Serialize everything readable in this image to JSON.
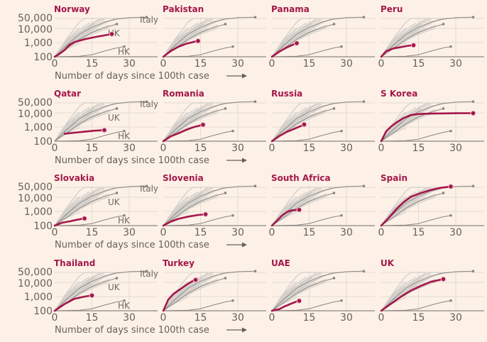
{
  "chart_data": {
    "type": "line",
    "title": "",
    "xlabel": "Number of days since 100th case",
    "ylabel": "",
    "y_scale": "log",
    "ylim": [
      100,
      60000
    ],
    "xlim": [
      0,
      40
    ],
    "x_ticks": [
      "0",
      "15",
      "30"
    ],
    "x_tick_values": [
      0,
      15,
      30
    ],
    "y_ticks": [
      "100",
      "1,000",
      "10,000",
      "50,000"
    ],
    "y_tick_values": [
      100,
      1000,
      10000,
      50000
    ],
    "grid": true,
    "colors": {
      "highlight": "#a3174a",
      "reference": "#8a8580",
      "background_lines": "#d3cfcb",
      "axis": "#8d8782",
      "grid": "#e5dbd2"
    },
    "reference_series": [
      {
        "name": "Italy",
        "points": [
          [
            0,
            100
          ],
          [
            5,
            700
          ],
          [
            10,
            3800
          ],
          [
            15,
            12000
          ],
          [
            20,
            28000
          ],
          [
            25,
            45000
          ],
          [
            30,
            57000
          ],
          [
            37,
            62000
          ]
        ]
      },
      {
        "name": "UK",
        "points": [
          [
            0,
            100
          ],
          [
            5,
            400
          ],
          [
            10,
            1700
          ],
          [
            15,
            5000
          ],
          [
            20,
            11000
          ],
          [
            25,
            20000
          ]
        ]
      },
      {
        "name": "HK",
        "points": [
          [
            0,
            100
          ],
          [
            10,
            110
          ],
          [
            15,
            140
          ],
          [
            20,
            250
          ],
          [
            25,
            420
          ],
          [
            28,
            520
          ]
        ]
      }
    ],
    "background_series_note": "grey lines for all other countries",
    "panels": [
      {
        "country": "Norway",
        "show_reference_labels": true,
        "points": [
          [
            0,
            100
          ],
          [
            2,
            160
          ],
          [
            4,
            300
          ],
          [
            6,
            700
          ],
          [
            8,
            1100
          ],
          [
            12,
            1700
          ],
          [
            16,
            2400
          ],
          [
            20,
            3200
          ],
          [
            23,
            4000
          ]
        ]
      },
      {
        "country": "Pakistan",
        "show_reference_labels": false,
        "points": [
          [
            0,
            100
          ],
          [
            3,
            250
          ],
          [
            6,
            500
          ],
          [
            9,
            800
          ],
          [
            12,
            1100
          ],
          [
            14,
            1300
          ]
        ]
      },
      {
        "country": "Panama",
        "show_reference_labels": false,
        "points": [
          [
            0,
            100
          ],
          [
            3,
            230
          ],
          [
            6,
            450
          ],
          [
            8,
            650
          ],
          [
            10,
            900
          ]
        ]
      },
      {
        "country": "Peru",
        "show_reference_labels": false,
        "points": [
          [
            0,
            100
          ],
          [
            2,
            250
          ],
          [
            5,
            390
          ],
          [
            8,
            480
          ],
          [
            11,
            600
          ],
          [
            13,
            650
          ]
        ]
      },
      {
        "country": "Qatar",
        "show_reference_labels": true,
        "points": [
          [
            4,
            330
          ],
          [
            8,
            400
          ],
          [
            12,
            470
          ],
          [
            16,
            550
          ],
          [
            20,
            600
          ]
        ]
      },
      {
        "country": "Romania",
        "show_reference_labels": false,
        "points": [
          [
            0,
            100
          ],
          [
            3,
            220
          ],
          [
            6,
            350
          ],
          [
            9,
            600
          ],
          [
            12,
            950
          ],
          [
            15,
            1300
          ],
          [
            16,
            1450
          ]
        ]
      },
      {
        "country": "Russia",
        "show_reference_labels": false,
        "points": [
          [
            0,
            100
          ],
          [
            3,
            230
          ],
          [
            6,
            450
          ],
          [
            9,
            750
          ],
          [
            12,
            1250
          ],
          [
            13,
            1500
          ]
        ]
      },
      {
        "country": "S Korea",
        "show_reference_labels": false,
        "points": [
          [
            0,
            100
          ],
          [
            2,
            500
          ],
          [
            4,
            1100
          ],
          [
            6,
            2000
          ],
          [
            9,
            4300
          ],
          [
            12,
            7000
          ],
          [
            15,
            8200
          ],
          [
            20,
            8800
          ],
          [
            30,
            9300
          ],
          [
            37,
            9400
          ]
        ]
      },
      {
        "country": "Slovakia",
        "show_reference_labels": true,
        "points": [
          [
            0,
            100
          ],
          [
            3,
            160
          ],
          [
            6,
            200
          ],
          [
            9,
            260
          ],
          [
            12,
            320
          ]
        ]
      },
      {
        "country": "Slovenia",
        "show_reference_labels": false,
        "points": [
          [
            0,
            100
          ],
          [
            3,
            190
          ],
          [
            6,
            300
          ],
          [
            10,
            430
          ],
          [
            14,
            560
          ],
          [
            17,
            630
          ]
        ]
      },
      {
        "country": "South Africa",
        "show_reference_labels": false,
        "points": [
          [
            0,
            100
          ],
          [
            2,
            220
          ],
          [
            4,
            500
          ],
          [
            6,
            900
          ],
          [
            8,
            1200
          ],
          [
            11,
            1300
          ]
        ]
      },
      {
        "country": "Spain",
        "show_reference_labels": false,
        "points": [
          [
            0,
            100
          ],
          [
            3,
            350
          ],
          [
            6,
            1400
          ],
          [
            9,
            4500
          ],
          [
            12,
            11000
          ],
          [
            16,
            20000
          ],
          [
            20,
            33000
          ],
          [
            24,
            46000
          ],
          [
            28,
            57000
          ]
        ]
      },
      {
        "country": "Thailand",
        "show_reference_labels": true,
        "points": [
          [
            0,
            100
          ],
          [
            4,
            300
          ],
          [
            8,
            700
          ],
          [
            12,
            1000
          ],
          [
            15,
            1200
          ]
        ]
      },
      {
        "country": "Turkey",
        "show_reference_labels": false,
        "points": [
          [
            0,
            100
          ],
          [
            2,
            600
          ],
          [
            4,
            1500
          ],
          [
            7,
            3500
          ],
          [
            10,
            8000
          ],
          [
            12,
            13000
          ],
          [
            13,
            15000
          ]
        ]
      },
      {
        "country": "UAE",
        "show_reference_labels": false,
        "points": [
          [
            0,
            100
          ],
          [
            3,
            130
          ],
          [
            5,
            200
          ],
          [
            8,
            330
          ],
          [
            10,
            450
          ],
          [
            11,
            500
          ]
        ]
      },
      {
        "country": "UK",
        "show_reference_labels": false,
        "points": [
          [
            0,
            100
          ],
          [
            4,
            320
          ],
          [
            8,
            1000
          ],
          [
            12,
            2700
          ],
          [
            16,
            5700
          ],
          [
            20,
            11000
          ],
          [
            25,
            17000
          ]
        ]
      }
    ]
  }
}
